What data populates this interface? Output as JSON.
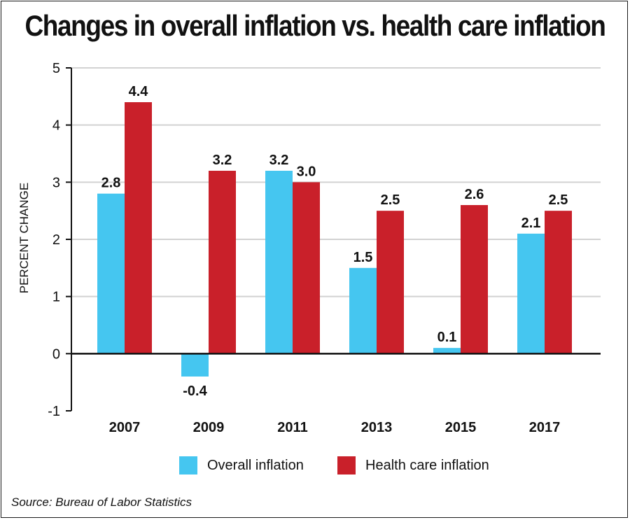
{
  "chart_data": {
    "type": "bar",
    "title": "Changes in overall inflation vs. health care inflation",
    "xlabel": "",
    "ylabel": "PERCENT CHANGE",
    "ylim": [
      -1,
      5
    ],
    "yticks": [
      "-1",
      "0",
      "1",
      "2",
      "3",
      "4",
      "5"
    ],
    "grid": true,
    "legend_position": "bottom",
    "categories": [
      "2007",
      "2009",
      "2011",
      "2013",
      "2015",
      "2017"
    ],
    "series": [
      {
        "name": "Overall inflation",
        "color": "#45c6f0",
        "values": [
          2.8,
          -0.4,
          3.2,
          1.5,
          0.1,
          2.1
        ],
        "labels": [
          "2.8",
          "-0.4",
          "3.2",
          "1.5",
          "0.1",
          "2.1"
        ]
      },
      {
        "name": "Health care inflation",
        "color": "#c9202a",
        "values": [
          4.4,
          3.2,
          3.0,
          2.5,
          2.6,
          2.5
        ],
        "labels": [
          "4.4",
          "3.2",
          "3.0",
          "2.5",
          "2.6",
          "2.5"
        ]
      }
    ],
    "source": "Source: Bureau of Labor Statistics"
  }
}
